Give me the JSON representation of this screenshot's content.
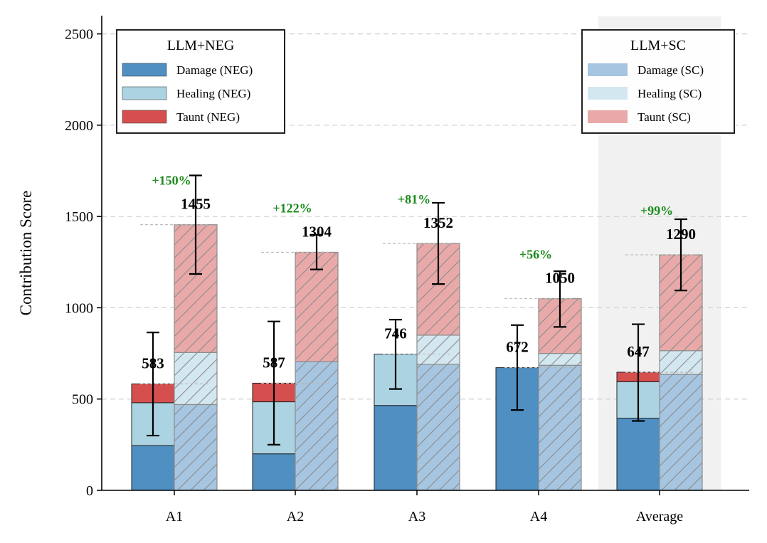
{
  "chart_data": {
    "type": "bar",
    "subtype": "grouped-stacked-with-error-bars",
    "categories": [
      "A1",
      "A2",
      "A3",
      "A4",
      "Average"
    ],
    "ylabel": "Contribution Score",
    "xlabel": "",
    "ylim": [
      0,
      2600
    ],
    "yticks": [
      0,
      500,
      1000,
      1500,
      2000,
      2500
    ],
    "grid": "y-dashed",
    "highlight_category": "Average",
    "groups": [
      {
        "name": "LLM+NEG",
        "hatched": false,
        "stack": [
          {
            "name": "Damage (NEG)",
            "color": "#4f8fc2",
            "values": [
              245,
              200,
              465,
              672,
              395
            ]
          },
          {
            "name": "Healing (NEG)",
            "color": "#acd3e1",
            "values": [
              235,
              285,
              281,
              0,
              200
            ]
          },
          {
            "name": "Taunt (NEG)",
            "color": "#d64f4f",
            "values": [
              103,
              102,
              0,
              0,
              52
            ]
          }
        ],
        "totals": [
          583,
          587,
          746,
          672,
          647
        ],
        "error_low": [
          300,
          250,
          555,
          440,
          380
        ],
        "error_high": [
          865,
          925,
          935,
          905,
          910
        ]
      },
      {
        "name": "LLM+SC",
        "hatched": true,
        "stack": [
          {
            "name": "Damage (SC)",
            "color": "#a6c5e0",
            "values": [
              470,
              705,
              690,
              685,
              635
            ]
          },
          {
            "name": "Healing (SC)",
            "color": "#d3e7f0",
            "values": [
              285,
              0,
              160,
              65,
              130
            ]
          },
          {
            "name": "Taunt (SC)",
            "color": "#e9a9a9",
            "values": [
              700,
              599,
              502,
              300,
              525
            ]
          }
        ],
        "totals": [
          1455,
          1304,
          1352,
          1050,
          1290
        ],
        "error_low": [
          1185,
          1210,
          1130,
          895,
          1095
        ],
        "error_high": [
          1725,
          1400,
          1575,
          1200,
          1485
        ]
      }
    ],
    "improvements": [
      "+150%",
      "+122%",
      "+81%",
      "+56%",
      "+99%"
    ],
    "legends": [
      {
        "title": "LLM+NEG",
        "placement": "top-left",
        "entries": [
          "Damage (NEG)",
          "Healing (NEG)",
          "Taunt (NEG)"
        ]
      },
      {
        "title": "LLM+SC",
        "placement": "top-right",
        "entries": [
          "Damage (SC)",
          "Healing (SC)",
          "Taunt (SC)"
        ]
      }
    ]
  }
}
